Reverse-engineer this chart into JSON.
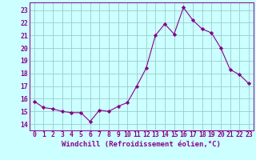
{
  "x": [
    0,
    1,
    2,
    3,
    4,
    5,
    6,
    7,
    8,
    9,
    10,
    11,
    12,
    13,
    14,
    15,
    16,
    17,
    18,
    19,
    20,
    21,
    22,
    23
  ],
  "y": [
    15.8,
    15.3,
    15.2,
    15.0,
    14.9,
    14.9,
    14.2,
    15.1,
    15.0,
    15.4,
    15.7,
    17.0,
    18.4,
    21.0,
    21.9,
    21.1,
    23.2,
    22.2,
    21.5,
    21.2,
    20.0,
    18.3,
    17.9,
    17.2
  ],
  "line_color": "#880088",
  "marker": "D",
  "marker_size": 2.2,
  "bg_color": "#ccffff",
  "grid_color": "#99cccc",
  "xlabel": "Windchill (Refroidissement éolien,°C)",
  "xlabel_fontsize": 6.5,
  "xtick_labels": [
    "0",
    "1",
    "2",
    "3",
    "4",
    "5",
    "6",
    "7",
    "8",
    "9",
    "10",
    "11",
    "12",
    "13",
    "14",
    "15",
    "16",
    "17",
    "18",
    "19",
    "20",
    "21",
    "22",
    "23"
  ],
  "ytick_labels": [
    "14",
    "15",
    "16",
    "17",
    "18",
    "19",
    "20",
    "21",
    "22",
    "23"
  ],
  "ylim": [
    13.5,
    23.6
  ],
  "xlim": [
    -0.5,
    23.5
  ],
  "tick_fontsize": 5.8
}
